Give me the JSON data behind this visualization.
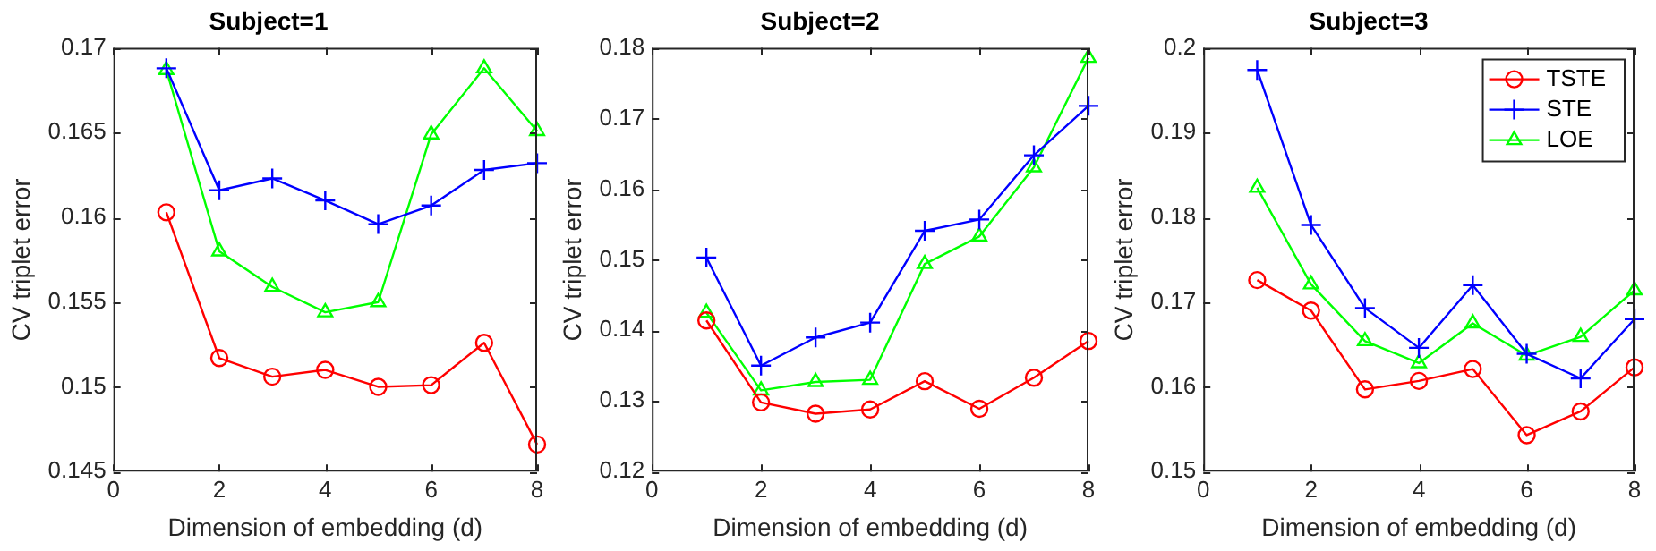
{
  "chart_data": [
    {
      "type": "line",
      "title": "Subject=1",
      "xlabel": "Dimension of embedding (d)",
      "ylabel": "CV triplet error",
      "x": [
        1,
        2,
        3,
        4,
        5,
        6,
        7,
        8
      ],
      "xlim": [
        0,
        8
      ],
      "xticks": [
        0,
        2,
        4,
        6,
        8
      ],
      "ylim": [
        0.145,
        0.17
      ],
      "yticks": [
        0.145,
        0.15,
        0.155,
        0.16,
        0.165,
        0.17
      ],
      "legend": false,
      "series": [
        {
          "color": "#ff0000",
          "marker": "circle",
          "values": [
            0.1603,
            0.1517,
            0.1506,
            0.151,
            0.15,
            0.1501,
            0.1526,
            0.1466
          ]
        },
        {
          "color": "#0000ff",
          "marker": "cross",
          "values": [
            0.1688,
            0.1616,
            0.1623,
            0.161,
            0.1596,
            0.1607,
            0.1628,
            0.1632
          ]
        },
        {
          "color": "#00ff00",
          "marker": "triangle",
          "values": [
            0.1687,
            0.158,
            0.1559,
            0.1544,
            0.155,
            0.1649,
            0.1688,
            0.1651
          ]
        }
      ]
    },
    {
      "type": "line",
      "title": "Subject=2",
      "xlabel": "Dimension of embedding (d)",
      "ylabel": "CV triplet error",
      "x": [
        1,
        2,
        3,
        4,
        5,
        6,
        7,
        8
      ],
      "xlim": [
        0,
        8
      ],
      "xticks": [
        0,
        2,
        4,
        6,
        8
      ],
      "ylim": [
        0.12,
        0.18
      ],
      "yticks": [
        0.12,
        0.13,
        0.14,
        0.15,
        0.16,
        0.17,
        0.18
      ],
      "legend": false,
      "series": [
        {
          "color": "#ff0000",
          "marker": "circle",
          "values": [
            0.1414,
            0.1298,
            0.1282,
            0.1288,
            0.1328,
            0.1289,
            0.1333,
            0.1385
          ]
        },
        {
          "color": "#0000ff",
          "marker": "cross",
          "values": [
            0.1503,
            0.135,
            0.139,
            0.1411,
            0.1541,
            0.1557,
            0.1648,
            0.1718
          ]
        },
        {
          "color": "#00ff00",
          "marker": "triangle",
          "values": [
            0.1425,
            0.1315,
            0.1327,
            0.133,
            0.1494,
            0.1533,
            0.1631,
            0.1786
          ]
        }
      ]
    },
    {
      "type": "line",
      "title": "Subject=3",
      "xlabel": "Dimension of embedding (d)",
      "ylabel": "CV triplet error",
      "x": [
        1,
        2,
        3,
        4,
        5,
        6,
        7,
        8
      ],
      "xlim": [
        0,
        8
      ],
      "xticks": [
        0,
        2,
        4,
        6,
        8
      ],
      "ylim": [
        0.15,
        0.2
      ],
      "yticks": [
        0.15,
        0.16,
        0.17,
        0.18,
        0.19,
        0.2
      ],
      "legend": "top right",
      "series": [
        {
          "name": "TSTE",
          "color": "#ff0000",
          "marker": "circle",
          "values": [
            0.1726,
            0.169,
            0.1597,
            0.1607,
            0.1621,
            0.1543,
            0.1571,
            0.1623
          ]
        },
        {
          "name": "STE",
          "color": "#0000ff",
          "marker": "cross",
          "values": [
            0.1974,
            0.1791,
            0.1693,
            0.1646,
            0.172,
            0.1639,
            0.161,
            0.168
          ]
        },
        {
          "name": "LOE",
          "color": "#00ff00",
          "marker": "triangle",
          "values": [
            0.1835,
            0.1721,
            0.1654,
            0.1628,
            0.1675,
            0.1637,
            0.1659,
            0.1714
          ]
        }
      ]
    }
  ]
}
